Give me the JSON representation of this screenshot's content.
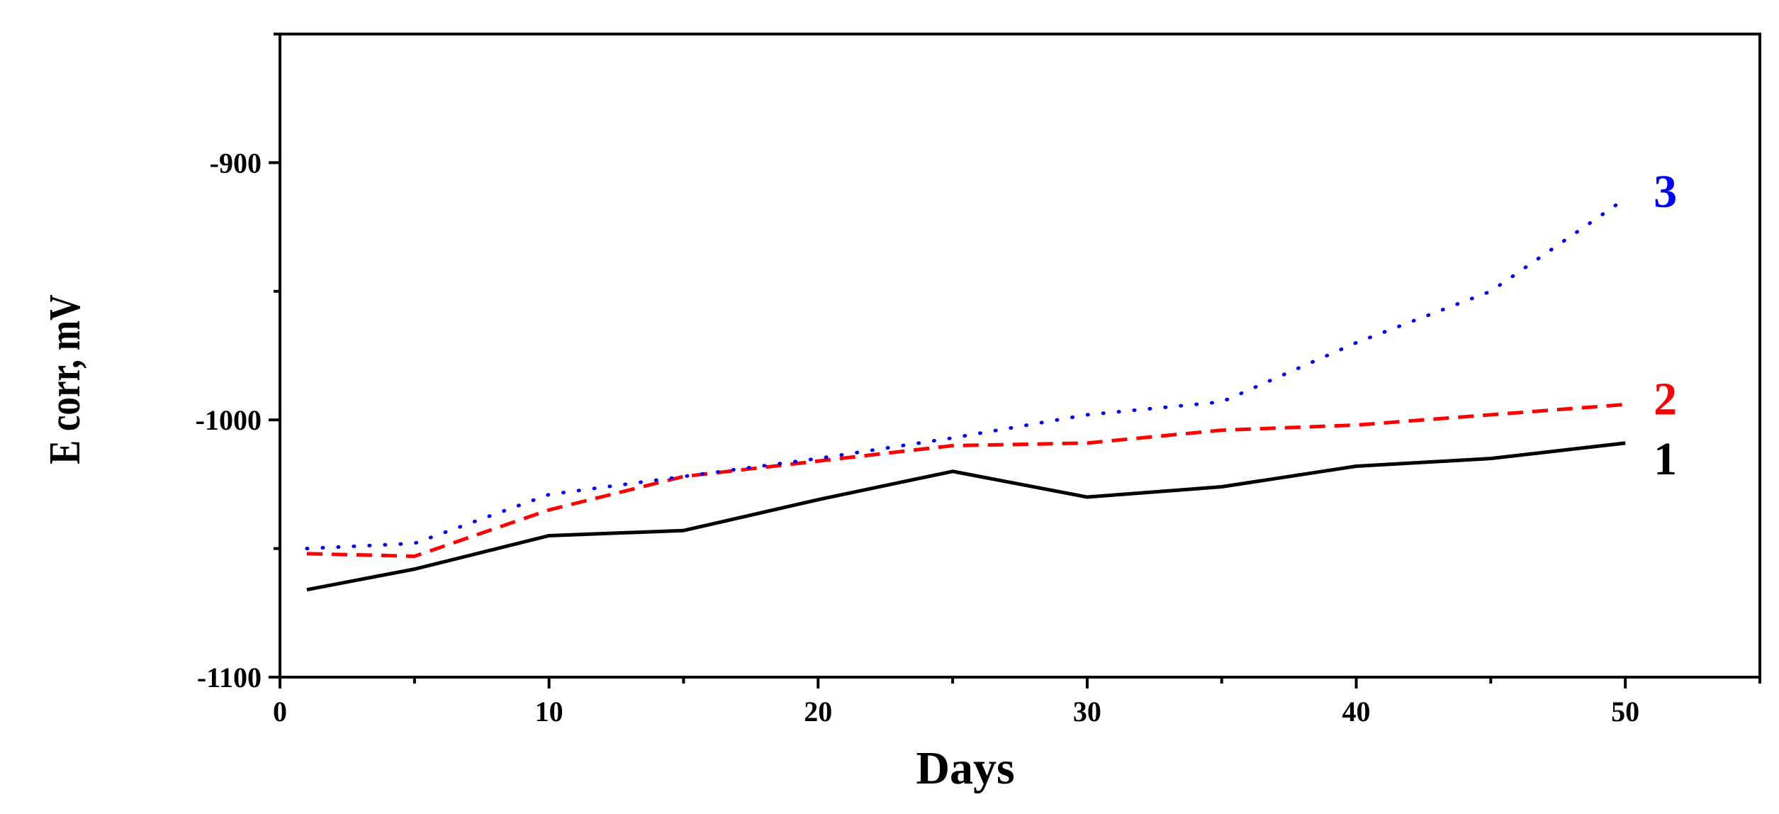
{
  "chart_data": {
    "type": "line",
    "title": "",
    "xlabel": "Days",
    "ylabel": "E corr, mV",
    "xlim": [
      0,
      55
    ],
    "ylim": [
      -1100,
      -850
    ],
    "xticks": [
      0,
      10,
      20,
      30,
      40,
      50
    ],
    "yticks": [
      -900,
      -1000,
      -1100
    ],
    "grid": false,
    "legend": "inline labels at right end of each series",
    "x": [
      1,
      5,
      10,
      15,
      20,
      25,
      30,
      35,
      40,
      45,
      50
    ],
    "series": [
      {
        "name": "1",
        "color": "#000000",
        "style": "solid",
        "values": [
          -1066,
          -1058,
          -1045,
          -1043,
          -1031,
          -1020,
          -1030,
          -1026,
          -1018,
          -1015,
          -1009
        ]
      },
      {
        "name": "2",
        "color": "#ff0000",
        "style": "dashed",
        "values": [
          -1052,
          -1053,
          -1035,
          -1022,
          -1016,
          -1010,
          -1009,
          -1004,
          -1002,
          -998,
          -994
        ]
      },
      {
        "name": "3",
        "color": "#0000ff",
        "style": "dotted",
        "values": [
          -1050,
          -1048,
          -1029,
          -1022,
          -1015,
          -1007,
          -998,
          -993,
          -970,
          -950,
          -914
        ]
      }
    ]
  }
}
